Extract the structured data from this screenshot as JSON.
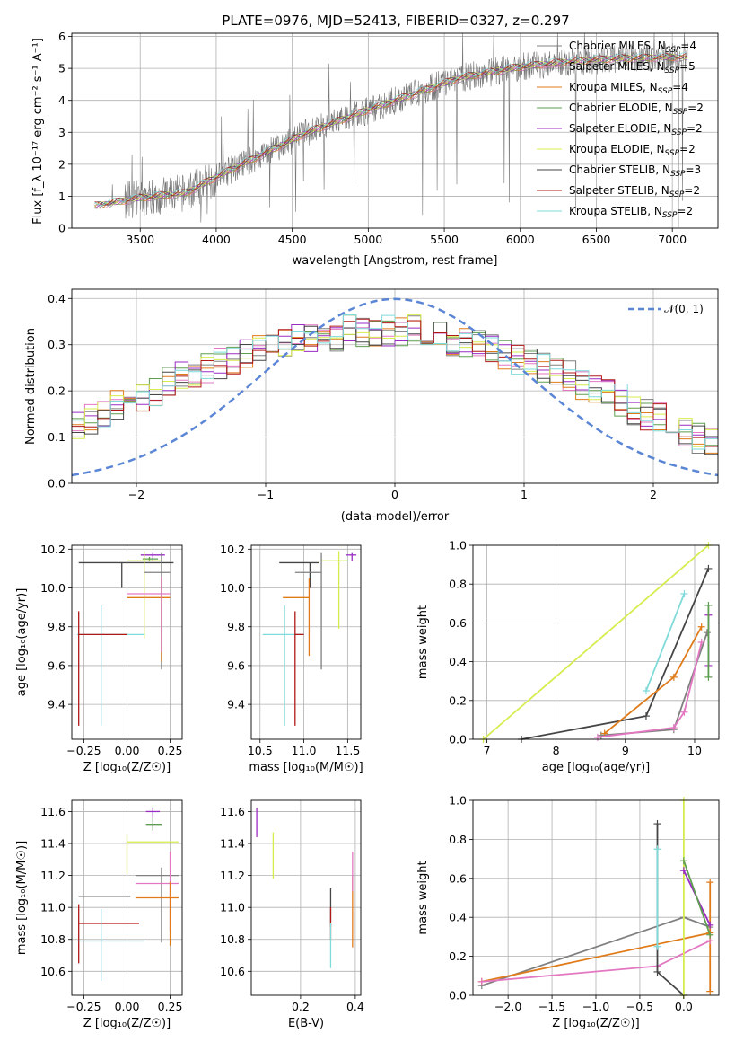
{
  "title": "PLATE=0976, MJD=52413, FIBERID=0327, z=0.297",
  "colors": {
    "Chabrier MILES": "#808080",
    "Salpeter MILES": "#e377c2",
    "Kroupa MILES": "#e07b1a",
    "Chabrier ELODIE": "#5e9e4f",
    "Salpeter ELODIE": "#9a2bc3",
    "Kroupa ELODIE": "#d7ec4e",
    "Chabrier STELIB": "#454545",
    "Salpeter STELIB": "#b01818",
    "Kroupa STELIB": "#7fdada",
    "data": "#777777",
    "gaussian": "#5b86d6"
  },
  "spectrum": {
    "legend": [
      {
        "text": "Chabrier MILES, N",
        "sub": "SSP",
        "tail": "=4"
      },
      {
        "text": "Salpeter MILES, N",
        "sub": "SSP",
        "tail": "=5"
      },
      {
        "text": "Kroupa MILES, N",
        "sub": "SSP",
        "tail": "=4"
      },
      {
        "text": "Chabrier ELODIE, N",
        "sub": "SSP",
        "tail": "=2"
      },
      {
        "text": "Salpeter ELODIE, N",
        "sub": "SSP",
        "tail": "=2"
      },
      {
        "text": "Kroupa ELODIE, N",
        "sub": "SSP",
        "tail": "=2"
      },
      {
        "text": "Chabrier STELIB, N",
        "sub": "SSP",
        "tail": "=3"
      },
      {
        "text": "Salpeter STELIB, N",
        "sub": "SSP",
        "tail": "=2"
      },
      {
        "text": "Kroupa STELIB, N",
        "sub": "SSP",
        "tail": "=2"
      }
    ],
    "xlabel": "wavelength [Angstrom, rest frame]",
    "ylabel": "Flux [f_λ 10⁻¹⁷ erg cm⁻² s⁻¹ A⁻¹]"
  },
  "residuals": {
    "legend": "𝒩(0, 1)",
    "xlabel": "(data-model)/error",
    "ylabel": "Normed distribution"
  },
  "labels": {
    "age": "age  [log₁₀(age/yr)]",
    "Z": "Z [log₁₀(Z/Z☉)]",
    "mass": "mass [log₁₀(M/M☉)]",
    "weight": "mass weight",
    "ebv": "E(B-V)"
  },
  "chart_data": [
    {
      "type": "line",
      "title": "PLATE=0976, MJD=52413, FIBERID=0327, z=0.297",
      "xlabel": "wavelength [Angstrom, rest frame]",
      "ylabel": "Flux [f_λ 10⁻¹⁷ erg cm⁻² s⁻¹ A⁻¹]",
      "xlim": [
        3050,
        7300
      ],
      "ylim": [
        0,
        6.1
      ],
      "xticks": [
        3500,
        4000,
        4500,
        5000,
        5500,
        6000,
        6500,
        7000
      ],
      "yticks": [
        0,
        1,
        2,
        3,
        4,
        5,
        6
      ],
      "continuum": {
        "x": [
          3200,
          3500,
          3800,
          4000,
          4300,
          4600,
          5000,
          5300,
          5600,
          6000,
          6300,
          6600,
          7000,
          7100
        ],
        "y": [
          0.7,
          0.95,
          1.1,
          1.6,
          2.3,
          3.0,
          3.7,
          4.2,
          4.7,
          5.05,
          5.2,
          5.3,
          5.35,
          5.35
        ]
      }
    },
    {
      "type": "bar",
      "xlabel": "(data-model)/error",
      "ylabel": "Normed distribution",
      "xlim": [
        -2.5,
        2.5
      ],
      "ylim": [
        0,
        0.42
      ],
      "xticks": [
        -2,
        -1,
        0,
        1,
        2
      ],
      "yticks": [
        0.0,
        0.1,
        0.2,
        0.3,
        0.4
      ],
      "bin_width": 0.1,
      "mean_distribution": [
        0.04,
        0.05,
        0.06,
        0.06,
        0.07,
        0.07,
        0.07,
        0.08,
        0.09,
        0.1,
        0.12,
        0.14,
        0.15,
        0.17,
        0.18,
        0.19,
        0.2,
        0.22,
        0.23,
        0.24,
        0.25,
        0.26,
        0.27,
        0.28,
        0.29,
        0.3,
        0.31,
        0.31,
        0.31,
        0.32,
        0.32,
        0.33,
        0.33,
        0.33,
        0.33,
        0.33,
        0.33,
        0.32,
        0.32,
        0.31,
        0.3,
        0.3,
        0.29,
        0.28,
        0.27,
        0.26,
        0.25,
        0.24,
        0.23,
        0.21,
        0.2,
        0.19,
        0.18,
        0.16,
        0.15,
        0.14,
        0.12,
        0.11,
        0.1,
        0.09,
        0.08,
        0.08,
        0.07,
        0.06,
        0.05,
        0.05,
        0.04,
        0.04,
        0.04,
        0.04
      ],
      "gaussian": {
        "name": "𝒩(0, 1)",
        "mean": 0,
        "sigma": 1
      }
    },
    {
      "type": "scatter",
      "xlabel": "Z [log₁₀(Z/Z☉)]",
      "ylabel": "age  [log₁₀(age/yr)]",
      "xlim": [
        -0.32,
        0.32
      ],
      "ylim": [
        9.22,
        10.22
      ],
      "xticks": [
        -0.25,
        0.0,
        0.25
      ],
      "yticks": [
        9.4,
        9.6,
        9.8,
        10.0,
        10.2
      ],
      "points": [
        {
          "model": "Chabrier STELIB",
          "x": -0.03,
          "y": 10.13,
          "xerr": [
            0.25,
            0.3
          ],
          "yerr": [
            0.13,
            0.0
          ]
        },
        {
          "model": "Salpeter ELODIE",
          "x": 0.15,
          "y": 10.17,
          "xerr": [
            0.07,
            0.07
          ],
          "yerr": [
            0.03,
            0.01
          ]
        },
        {
          "model": "Chabrier ELODIE",
          "x": 0.13,
          "y": 10.15,
          "xerr": [
            0.04,
            0.05
          ],
          "yerr": [
            0.01,
            0.01
          ]
        },
        {
          "model": "Kroupa ELODIE",
          "x": 0.1,
          "y": 10.14,
          "xerr": [
            0.1,
            0.1
          ],
          "yerr": [
            0.4,
            0.05
          ]
        },
        {
          "model": "Chabrier MILES",
          "x": 0.2,
          "y": 10.08,
          "xerr": [
            0.1,
            0.05
          ],
          "yerr": [
            0.5,
            0.1
          ]
        },
        {
          "model": "Kroupa MILES",
          "x": 0.2,
          "y": 9.95,
          "xerr": [
            0.2,
            0.05
          ],
          "yerr": [
            0.33,
            0.1
          ]
        },
        {
          "model": "Salpeter MILES",
          "x": 0.2,
          "y": 9.97,
          "xerr": [
            0.2,
            0.05
          ],
          "yerr": [
            0.3,
            0.09
          ]
        },
        {
          "model": "Kroupa STELIB",
          "x": -0.15,
          "y": 9.76,
          "xerr": [
            0.14,
            0.25
          ],
          "yerr": [
            0.47,
            0.15
          ]
        },
        {
          "model": "Salpeter STELIB",
          "x": -0.28,
          "y": 9.76,
          "xerr": [
            0.0,
            0.28
          ],
          "yerr": [
            0.47,
            0.12
          ]
        }
      ]
    },
    {
      "type": "scatter",
      "xlabel": "mass [log₁₀(M/M☉)]",
      "ylabel": "",
      "xlim": [
        10.4,
        11.65
      ],
      "ylim": [
        9.22,
        10.22
      ],
      "xticks": [
        10.5,
        11.0,
        11.5
      ],
      "yticks": [
        9.4,
        9.6,
        9.8,
        10.0,
        10.2
      ],
      "points": [
        {
          "model": "Chabrier STELIB",
          "x": 11.07,
          "y": 10.13,
          "xerr": [
            0.35,
            0.1
          ],
          "yerr": [
            0.13,
            0.0
          ]
        },
        {
          "model": "Salpeter ELODIE",
          "x": 11.55,
          "y": 10.17,
          "xerr": [
            0.07,
            0.05
          ],
          "yerr": [
            0.03,
            0.01
          ]
        },
        {
          "model": "Kroupa ELODIE",
          "x": 11.4,
          "y": 10.14,
          "xerr": [
            0.2,
            0.1
          ],
          "yerr": [
            0.35,
            0.05
          ]
        },
        {
          "model": "Chabrier MILES",
          "x": 11.2,
          "y": 10.08,
          "xerr": [
            0.3,
            0.0
          ],
          "yerr": [
            0.5,
            0.1
          ]
        },
        {
          "model": "Kroupa MILES",
          "x": 11.06,
          "y": 9.95,
          "xerr": [
            0.3,
            0.0
          ],
          "yerr": [
            0.3,
            0.1
          ]
        },
        {
          "model": "Kroupa STELIB",
          "x": 10.78,
          "y": 9.76,
          "xerr": [
            0.25,
            0.2
          ],
          "yerr": [
            0.47,
            0.15
          ]
        },
        {
          "model": "Salpeter STELIB",
          "x": 10.9,
          "y": 9.76,
          "xerr": [
            0.0,
            0.1
          ],
          "yerr": [
            0.47,
            0.12
          ]
        }
      ]
    },
    {
      "type": "line",
      "xlabel": "age  [log₁₀(age/yr)]",
      "ylabel": "mass weight",
      "xlim": [
        6.8,
        10.35
      ],
      "ylim": [
        0,
        1
      ],
      "xticks": [
        7,
        8,
        9,
        10
      ],
      "yticks": [
        0.0,
        0.2,
        0.4,
        0.6,
        0.8,
        1.0
      ],
      "series": [
        {
          "model": "Kroupa ELODIE",
          "x": [
            6.95,
            10.2
          ],
          "y": [
            0.0,
            1.0
          ]
        },
        {
          "model": "Chabrier STELIB",
          "x": [
            7.5,
            9.3,
            10.2
          ],
          "y": [
            0.0,
            0.12,
            0.88
          ]
        },
        {
          "model": "Kroupa STELIB",
          "x": [
            9.3,
            9.85
          ],
          "y": [
            0.25,
            0.75
          ]
        },
        {
          "model": "Chabrier MILES",
          "x": [
            8.65,
            9.7,
            10.18
          ],
          "y": [
            0.02,
            0.05,
            0.55
          ]
        },
        {
          "model": "Kroupa MILES",
          "x": [
            8.7,
            9.7,
            10.1
          ],
          "y": [
            0.03,
            0.32,
            0.58
          ]
        },
        {
          "model": "Salpeter MILES",
          "x": [
            8.6,
            9.7,
            9.85,
            10.1
          ],
          "y": [
            0.01,
            0.06,
            0.14,
            0.5
          ]
        },
        {
          "model": "Salpeter ELODIE",
          "x": [
            10.2,
            10.2
          ],
          "y": [
            0.38,
            0.64
          ]
        },
        {
          "model": "Chabrier ELODIE",
          "x": [
            10.2,
            10.2
          ],
          "y": [
            0.32,
            0.69
          ]
        }
      ]
    },
    {
      "type": "scatter",
      "xlabel": "Z [log₁₀(Z/Z☉)]",
      "ylabel": "mass [log₁₀(M/M☉)]",
      "xlim": [
        -0.32,
        0.32
      ],
      "ylim": [
        10.45,
        11.67
      ],
      "xticks": [
        -0.25,
        0.0,
        0.25
      ],
      "yticks": [
        10.6,
        10.8,
        11.0,
        11.2,
        11.4,
        11.6
      ],
      "points": [
        {
          "model": "Salpeter ELODIE",
          "x": 0.15,
          "y": 11.6,
          "xerr": [
            0.04,
            0.04
          ],
          "yerr": [
            0.04,
            0.02
          ]
        },
        {
          "model": "Chabrier ELODIE",
          "x": 0.15,
          "y": 11.52,
          "xerr": [
            0.04,
            0.05
          ],
          "yerr": [
            0.04,
            0.04
          ]
        },
        {
          "model": "Kroupa ELODIE",
          "x": 0.0,
          "y": 11.41,
          "xerr": [
            0.0,
            0.3
          ],
          "yerr": [
            0.2,
            0.05
          ]
        },
        {
          "model": "Chabrier MILES",
          "x": 0.2,
          "y": 11.2,
          "xerr": [
            0.15,
            0.1
          ],
          "yerr": [
            0.42,
            0.05
          ]
        },
        {
          "model": "Salpeter MILES",
          "x": 0.25,
          "y": 11.15,
          "xerr": [
            0.2,
            0.05
          ],
          "yerr": [
            0.3,
            0.2
          ]
        },
        {
          "model": "Chabrier STELIB",
          "x": -0.28,
          "y": 11.07,
          "xerr": [
            0.0,
            0.3
          ],
          "yerr": [
            0.0,
            0.0
          ]
        },
        {
          "model": "Kroupa MILES",
          "x": 0.25,
          "y": 11.06,
          "xerr": [
            0.2,
            0.05
          ],
          "yerr": [
            0.3,
            0.1
          ]
        },
        {
          "model": "Salpeter STELIB",
          "x": -0.28,
          "y": 10.9,
          "xerr": [
            0.0,
            0.35
          ],
          "yerr": [
            0.25,
            0.12
          ]
        },
        {
          "model": "Kroupa STELIB",
          "x": -0.15,
          "y": 10.79,
          "xerr": [
            0.14,
            0.25
          ],
          "yerr": [
            0.25,
            0.2
          ]
        }
      ]
    },
    {
      "type": "scatter",
      "xlabel": "E(B-V)",
      "ylabel": "",
      "xlim": [
        0.02,
        0.42
      ],
      "ylim": [
        10.45,
        11.67
      ],
      "xticks": [
        0.2,
        0.4
      ],
      "yticks": [
        10.6,
        10.8,
        11.0,
        11.2,
        11.4,
        11.6
      ],
      "points": [
        {
          "model": "Salpeter ELODIE",
          "x": 0.04,
          "y": 11.52,
          "yerr": [
            0.08,
            0.1
          ]
        },
        {
          "model": "Kroupa ELODIE",
          "x": 0.1,
          "y": 11.3,
          "yerr": [
            0.12,
            0.17
          ]
        },
        {
          "model": "Chabrier STELIB",
          "x": 0.31,
          "y": 11.0,
          "yerr": [
            0.12,
            0.12
          ]
        },
        {
          "model": "Salpeter STELIB",
          "x": 0.31,
          "y": 10.9,
          "yerr": [
            0.1,
            0.1
          ]
        },
        {
          "model": "Kroupa STELIB",
          "x": 0.31,
          "y": 10.8,
          "yerr": [
            0.18,
            0.1
          ]
        },
        {
          "model": "Kroupa MILES",
          "x": 0.39,
          "y": 11.0,
          "yerr": [
            0.25,
            0.2
          ]
        },
        {
          "model": "Salpeter MILES",
          "x": 0.39,
          "y": 11.2,
          "yerr": [
            0.1,
            0.15
          ]
        }
      ]
    },
    {
      "type": "line",
      "xlabel": "Z [log₁₀(Z/Z☉)]",
      "ylabel": "mass weight",
      "xlim": [
        -2.4,
        0.4
      ],
      "ylim": [
        0,
        1
      ],
      "xticks": [
        -2.0,
        -1.5,
        -1.0,
        -0.5,
        0.0
      ],
      "yticks": [
        0.0,
        0.2,
        0.4,
        0.6,
        0.8,
        1.0
      ],
      "series": [
        {
          "model": "Chabrier MILES",
          "x": [
            -2.3,
            0.0,
            0.3
          ],
          "y": [
            0.05,
            0.4,
            0.35
          ]
        },
        {
          "model": "Kroupa MILES",
          "x": [
            -2.3,
            0.3,
            0.3,
            0.3
          ],
          "y": [
            0.07,
            0.32,
            0.58,
            0.02
          ]
        },
        {
          "model": "Salpeter MILES",
          "x": [
            -2.3,
            -0.3,
            0.3
          ],
          "y": [
            0.07,
            0.15,
            0.28
          ]
        },
        {
          "model": "Chabrier STELIB",
          "x": [
            -0.3,
            -0.3,
            0.0
          ],
          "y": [
            0.88,
            0.12,
            0.0
          ]
        },
        {
          "model": "Kroupa STELIB",
          "x": [
            -0.3,
            -0.3
          ],
          "y": [
            0.75,
            0.25
          ]
        },
        {
          "model": "Kroupa ELODIE",
          "x": [
            0.0,
            0.0
          ],
          "y": [
            1.0,
            0.0
          ]
        },
        {
          "model": "Salpeter ELODIE",
          "x": [
            0.0,
            0.3
          ],
          "y": [
            0.64,
            0.36
          ]
        },
        {
          "model": "Chabrier ELODIE",
          "x": [
            0.0,
            0.3
          ],
          "y": [
            0.69,
            0.31
          ]
        }
      ]
    }
  ]
}
